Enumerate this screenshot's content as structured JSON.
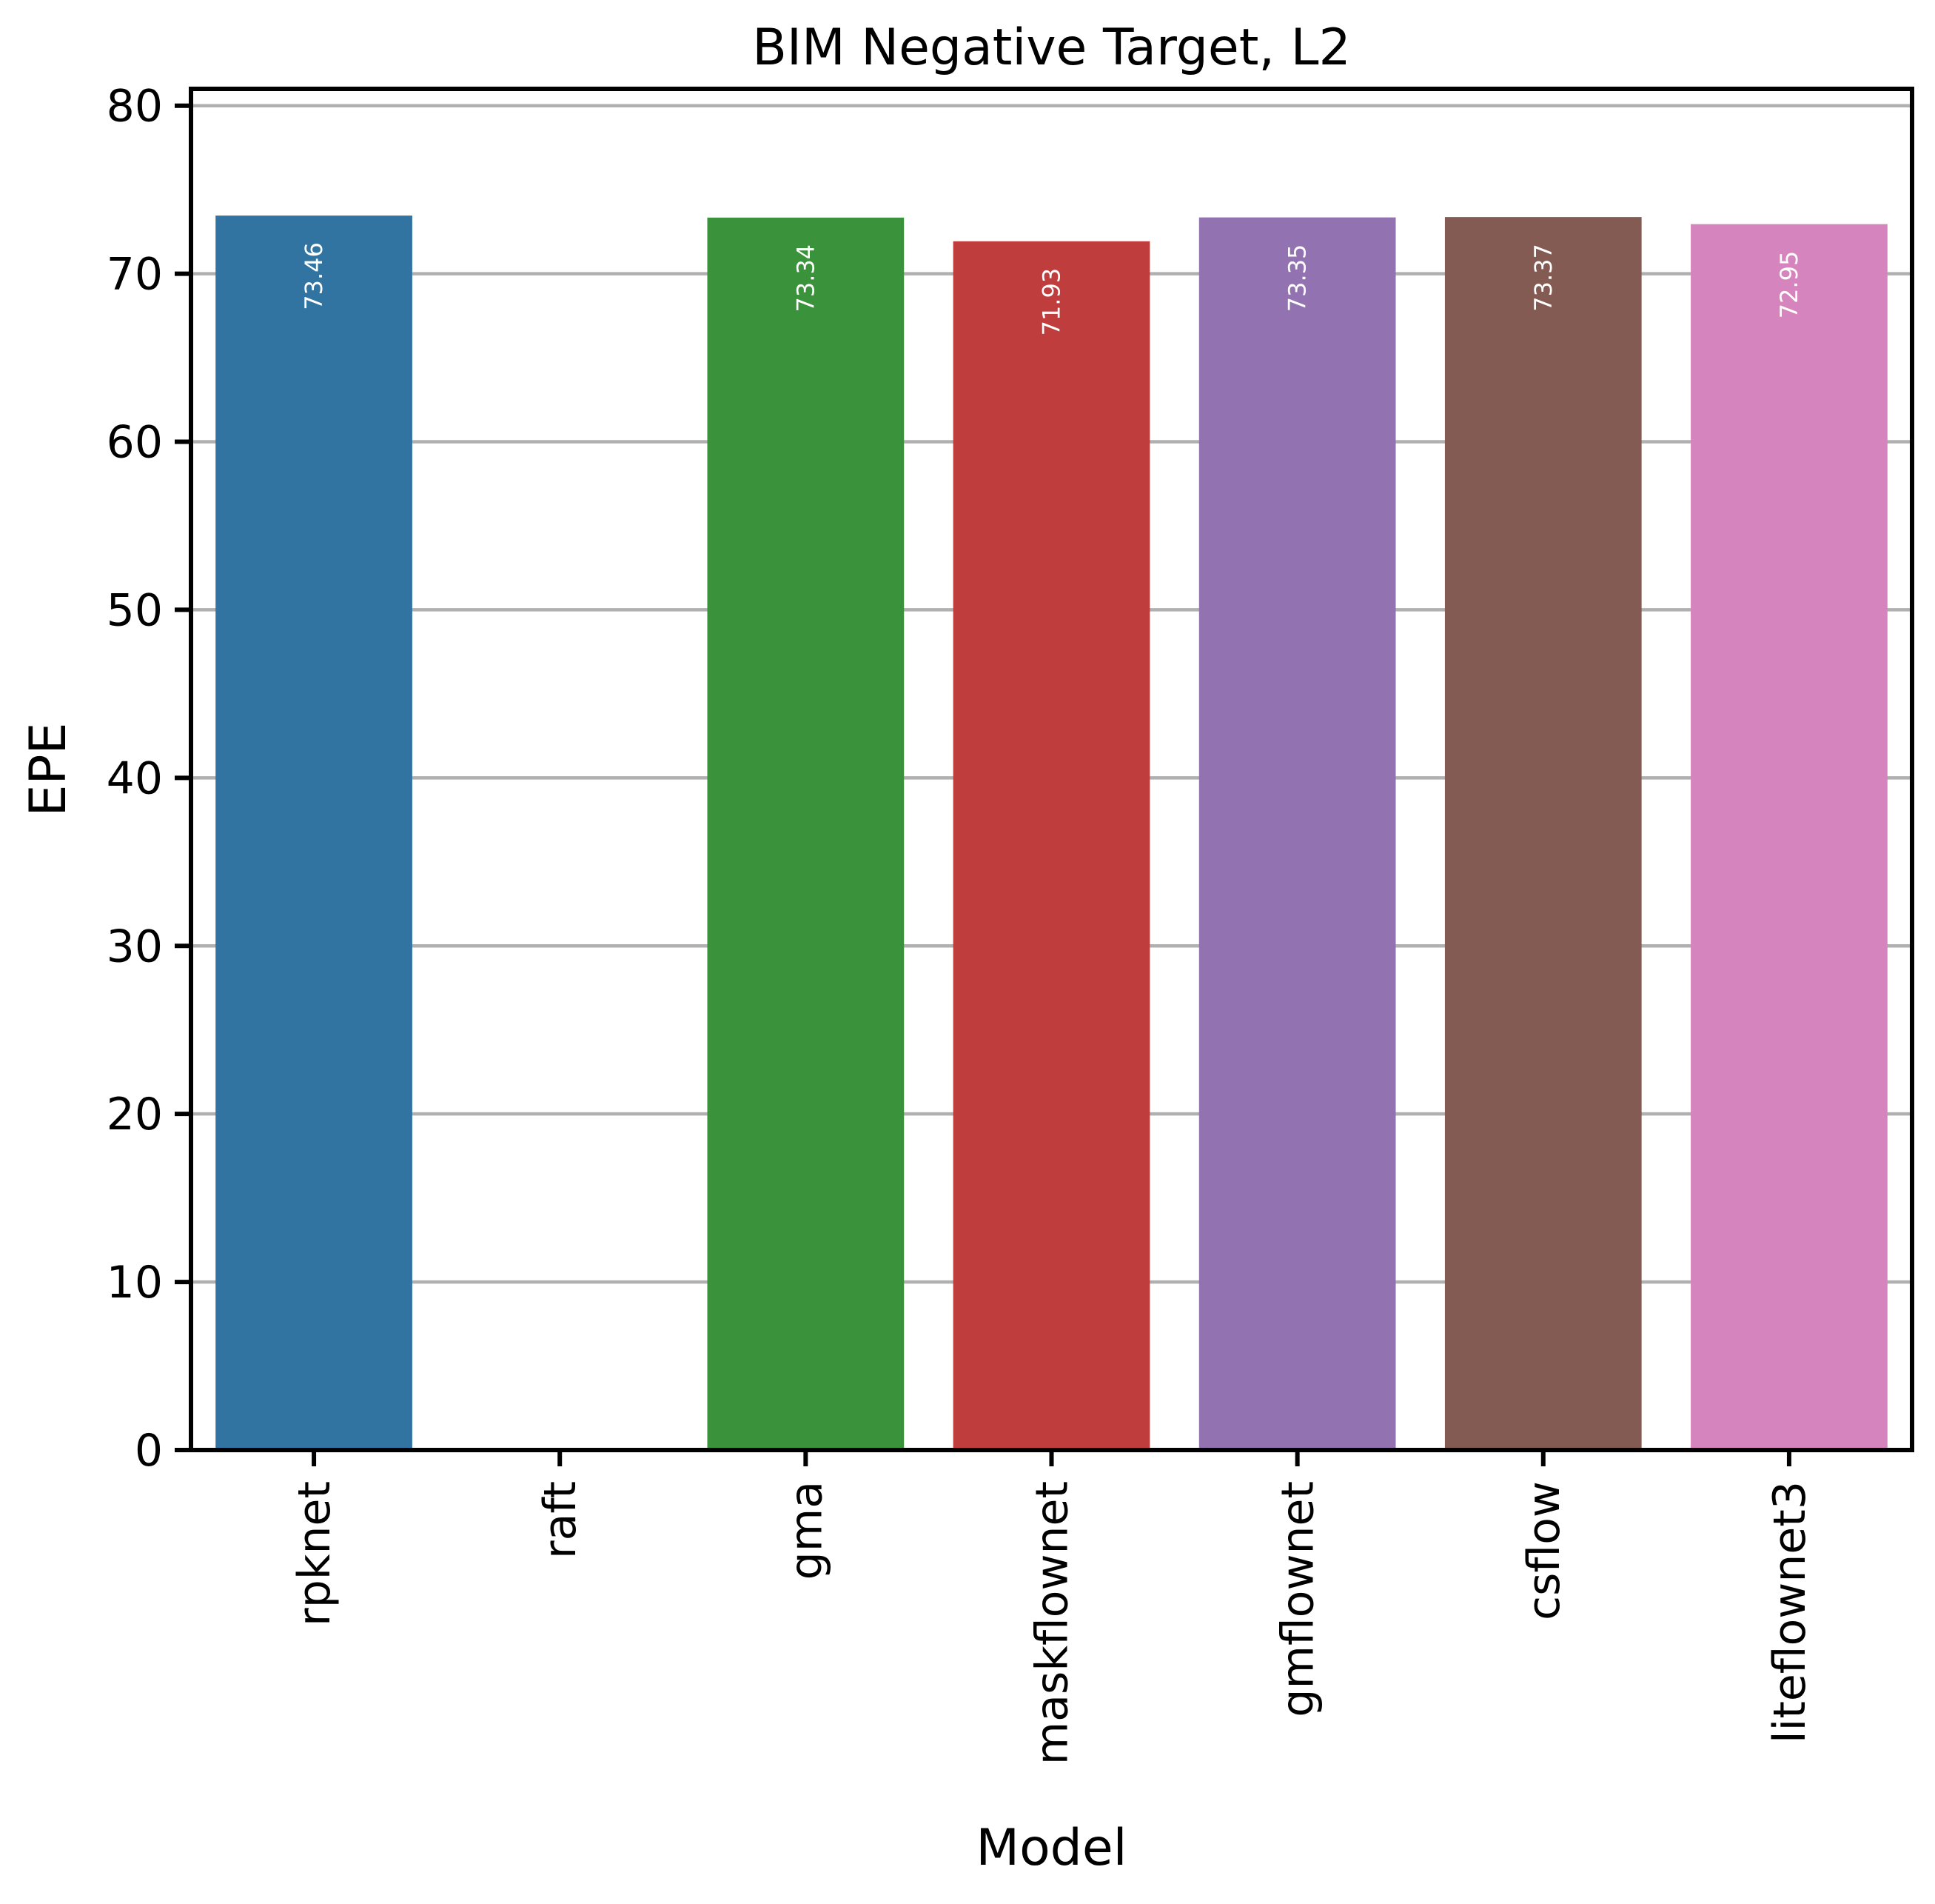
{
  "chart_data": {
    "type": "bar",
    "title": "BIM Negative Target, L2",
    "xlabel": "Model",
    "ylabel": "EPE",
    "categories": [
      "rpknet",
      "raft",
      "gma",
      "maskflownet",
      "gmflownet",
      "csflow",
      "liteflownet3"
    ],
    "values": [
      73.46,
      null,
      73.34,
      71.93,
      73.35,
      73.37,
      72.95
    ],
    "data_labels": [
      "73.46",
      "",
      "73.34",
      "71.93",
      "73.35",
      "73.37",
      "72.95"
    ],
    "colors": [
      "#3274a1",
      "#e1812c",
      "#3a923a",
      "#c03d3e",
      "#9372b2",
      "#845b53",
      "#d684bd"
    ],
    "ylim": [
      0,
      81
    ],
    "yticks": [
      0,
      10,
      20,
      30,
      40,
      50,
      60,
      70,
      80
    ],
    "grid": true,
    "grid_axis": "y"
  }
}
